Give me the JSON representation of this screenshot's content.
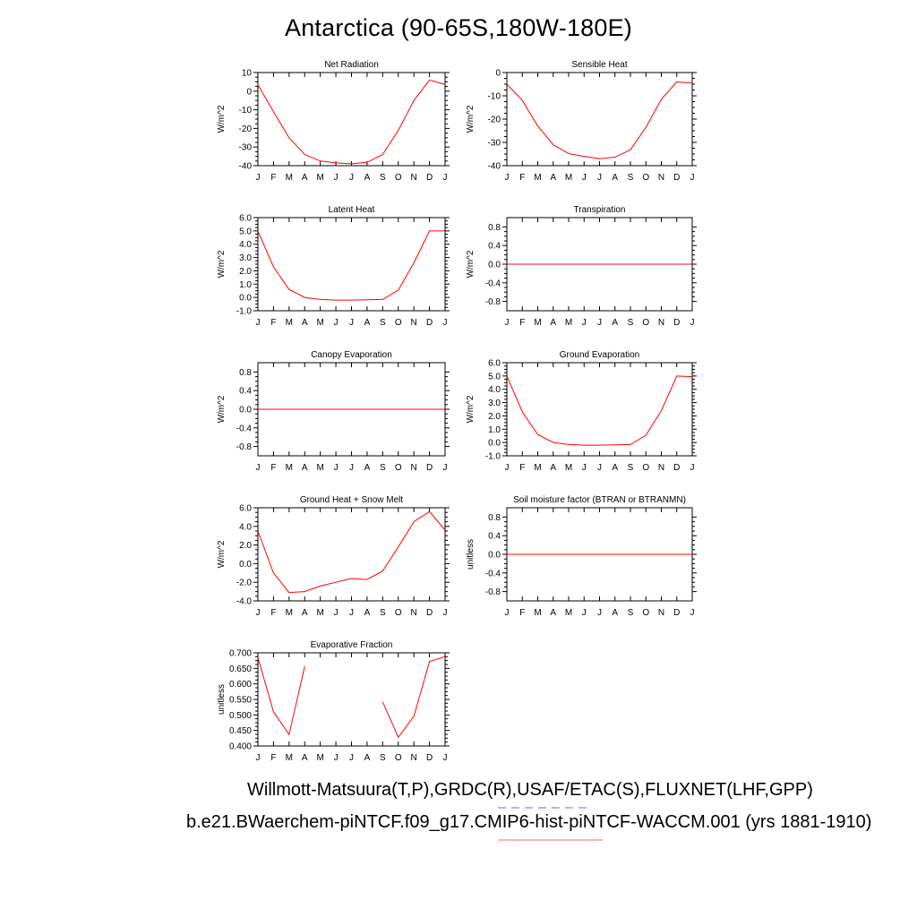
{
  "figure": {
    "title": "Antarctica (90-65S,180W-180E)",
    "caption_line1": "Willmott-Matsuura(T,P),GRDC(R),USAF/ETAC(S),FLUXNET(LHF,GPP)",
    "caption_line2": "b.e21.BWaerchem-piNTCF.f09_g17.CMIP6-hist-piNTCF-WACCM.001 (yrs 1881-1910)",
    "line_color": "#ff0000",
    "legend_dash_color": "#8888ee",
    "legend_solid_color": "#ff9999"
  },
  "chart_data": [
    {
      "id": "net-radiation",
      "type": "line",
      "title": "Net Radiation",
      "ylabel": "W/m^2",
      "categories": [
        "J",
        "F",
        "M",
        "A",
        "M",
        "J",
        "J",
        "A",
        "S",
        "O",
        "N",
        "D",
        "J"
      ],
      "ylim": [
        -40,
        10
      ],
      "yticks": [
        10,
        0,
        -10,
        -20,
        -30,
        -40
      ],
      "ytick_labels": [
        "10",
        "0",
        "-10",
        "-20",
        "-30",
        "-40"
      ],
      "series": [
        {
          "values": [
            3.5,
            -11,
            -25,
            -34,
            -37.5,
            -38.5,
            -39,
            -38.2,
            -34,
            -21,
            -5,
            6,
            3.5
          ]
        }
      ]
    },
    {
      "id": "sensible-heat",
      "type": "line",
      "title": "Sensible Heat",
      "ylabel": "W/m^2",
      "categories": [
        "J",
        "F",
        "M",
        "A",
        "M",
        "J",
        "J",
        "A",
        "S",
        "O",
        "N",
        "D",
        "J"
      ],
      "ylim": [
        -40,
        0
      ],
      "yticks": [
        0,
        -10,
        -20,
        -30,
        -40
      ],
      "ytick_labels": [
        "0",
        "-10",
        "-20",
        "-30",
        "-40"
      ],
      "series": [
        {
          "values": [
            -5,
            -12,
            -23,
            -31,
            -34.8,
            -36,
            -37,
            -36.3,
            -33.2,
            -23.5,
            -11.5,
            -4,
            -4.5
          ]
        }
      ]
    },
    {
      "id": "latent-heat",
      "type": "line",
      "title": "Latent Heat",
      "ylabel": "W/m^2",
      "categories": [
        "J",
        "F",
        "M",
        "A",
        "M",
        "J",
        "J",
        "A",
        "S",
        "O",
        "N",
        "D",
        "J"
      ],
      "ylim": [
        -1,
        6
      ],
      "yticks": [
        6,
        5,
        4,
        3,
        2,
        1,
        0,
        -1
      ],
      "ytick_labels": [
        "6.0",
        "5.0",
        "4.0",
        "3.0",
        "2.0",
        "1.0",
        "0.0",
        "-1.0"
      ],
      "series": [
        {
          "values": [
            5,
            2.3,
            0.6,
            0,
            -0.15,
            -0.2,
            -0.2,
            -0.18,
            -0.15,
            0.55,
            2.6,
            5,
            5
          ]
        }
      ]
    },
    {
      "id": "transpiration",
      "type": "line",
      "title": "Transpiration",
      "ylabel": "W/m^2",
      "categories": [
        "J",
        "F",
        "M",
        "A",
        "M",
        "J",
        "J",
        "A",
        "S",
        "O",
        "N",
        "D",
        "J"
      ],
      "ylim": [
        -1,
        1
      ],
      "yticks": [
        0.8,
        0.4,
        0,
        -0.4,
        -0.8
      ],
      "ytick_labels": [
        "0.8",
        "0.4",
        "0.0",
        "-0.4",
        "-0.8"
      ],
      "series": [
        {
          "values": [
            0,
            0,
            0,
            0,
            0,
            0,
            0,
            0,
            0,
            0,
            0,
            0,
            0
          ]
        }
      ]
    },
    {
      "id": "canopy-evaporation",
      "type": "line",
      "title": "Canopy Evaporation",
      "ylabel": "W/m^2",
      "categories": [
        "J",
        "F",
        "M",
        "A",
        "M",
        "J",
        "J",
        "A",
        "S",
        "O",
        "N",
        "D",
        "J"
      ],
      "ylim": [
        -1,
        1
      ],
      "yticks": [
        0.8,
        0.4,
        0,
        -0.4,
        -0.8
      ],
      "ytick_labels": [
        "0.8",
        "0.4",
        "0.0",
        "-0.4",
        "-0.8"
      ],
      "series": [
        {
          "values": [
            0,
            0,
            0,
            0,
            0,
            0,
            0,
            0,
            0,
            0,
            0,
            0,
            0
          ]
        }
      ]
    },
    {
      "id": "ground-evaporation",
      "type": "line",
      "title": "Ground Evaporation",
      "ylabel": "W/m^2",
      "categories": [
        "J",
        "F",
        "M",
        "A",
        "M",
        "J",
        "J",
        "A",
        "S",
        "O",
        "N",
        "D",
        "J"
      ],
      "ylim": [
        -1,
        6
      ],
      "yticks": [
        6,
        5,
        4,
        3,
        2,
        1,
        0,
        -1
      ],
      "ytick_labels": [
        "6.0",
        "5.0",
        "4.0",
        "3.0",
        "2.0",
        "1.0",
        "0.0",
        "-1.0"
      ],
      "series": [
        {
          "values": [
            5,
            2.3,
            0.6,
            0,
            -0.15,
            -0.2,
            -0.2,
            -0.18,
            -0.15,
            0.55,
            2.4,
            5,
            4.95
          ]
        }
      ]
    },
    {
      "id": "ground-heat-snow-melt",
      "type": "line",
      "title": "Ground Heat + Snow Melt",
      "ylabel": "W/m^2",
      "categories": [
        "J",
        "F",
        "M",
        "A",
        "M",
        "J",
        "J",
        "A",
        "S",
        "O",
        "N",
        "D",
        "J"
      ],
      "ylim": [
        -4,
        6
      ],
      "yticks": [
        6,
        4,
        2,
        0,
        -2,
        -4
      ],
      "ytick_labels": [
        "6.0",
        "4.0",
        "2.0",
        "0.0",
        "-2.0",
        "-4.0"
      ],
      "series": [
        {
          "values": [
            3.5,
            -1,
            -3.1,
            -3,
            -2.4,
            -2,
            -1.6,
            -1.7,
            -0.8,
            1.8,
            4.5,
            5.6,
            3.6
          ]
        }
      ]
    },
    {
      "id": "soil-moisture-factor",
      "type": "line",
      "title": "Soil moisture factor (BTRAN or BTRANMN)",
      "ylabel": "unitless",
      "categories": [
        "J",
        "F",
        "M",
        "A",
        "M",
        "J",
        "J",
        "A",
        "S",
        "O",
        "N",
        "D",
        "J"
      ],
      "ylim": [
        -1,
        1
      ],
      "yticks": [
        0.8,
        0.4,
        0,
        -0.4,
        -0.8
      ],
      "ytick_labels": [
        "0.8",
        "0.4",
        "0.0",
        "-0.4",
        "-0.8"
      ],
      "series": [
        {
          "values": [
            0,
            0,
            0,
            0,
            0,
            0,
            0,
            0,
            0,
            0,
            0,
            0,
            0
          ]
        }
      ]
    },
    {
      "id": "evaporative-fraction",
      "type": "line",
      "title": "Evaporative Fraction",
      "ylabel": "unitless",
      "categories": [
        "J",
        "F",
        "M",
        "A",
        "M",
        "J",
        "J",
        "A",
        "S",
        "O",
        "N",
        "D",
        "J"
      ],
      "ylim": [
        0.4,
        0.7
      ],
      "yticks": [
        0.7,
        0.65,
        0.6,
        0.55,
        0.5,
        0.45,
        0.4
      ],
      "ytick_labels": [
        "0.700",
        "0.650",
        "0.600",
        "0.550",
        "0.500",
        "0.450",
        "0.400"
      ],
      "series": [
        {
          "values": [
            0.685,
            0.51,
            0.437,
            0.657,
            null,
            null,
            null,
            null,
            0.542,
            0.428,
            0.496,
            0.672,
            0.688
          ]
        }
      ]
    }
  ]
}
